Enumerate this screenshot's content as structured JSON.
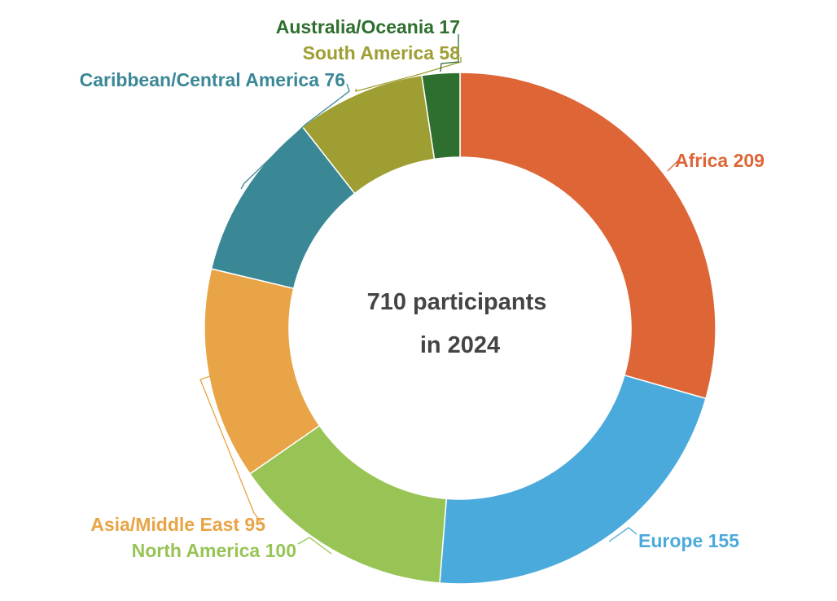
{
  "chart_data": {
    "type": "pie",
    "variant": "donut",
    "center_text": [
      "710 participants",
      "in 2024"
    ],
    "total": 710,
    "slices": [
      {
        "label": "Africa",
        "value": 209,
        "color": "#DE6536"
      },
      {
        "label": "Europe",
        "value": 155,
        "color": "#4BAADC"
      },
      {
        "label": "North America",
        "value": 100,
        "color": "#97C455"
      },
      {
        "label": "Asia/Middle East",
        "value": 95,
        "color": "#E8A446"
      },
      {
        "label": "Caribbean/Central America",
        "value": 76,
        "color": "#3A8896"
      },
      {
        "label": "South America",
        "value": 58,
        "color": "#9E9E33"
      },
      {
        "label": "Australia/Oceania",
        "value": 17,
        "color": "#2E6E2E"
      }
    ],
    "legend": "none",
    "labels": "outside with leader lines"
  }
}
